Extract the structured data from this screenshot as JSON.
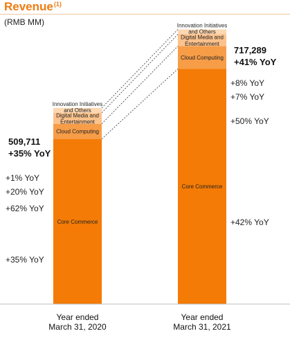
{
  "header": {
    "title": "Revenue",
    "footnote_marker": "(1)",
    "unit": "(RMB MM)"
  },
  "colors": {
    "accent": "#ef7b10",
    "core_commerce": "#f47b06",
    "cloud_computing": "#f79d48",
    "digital_media": "#fbc28c",
    "innovation": "#fcd7b1"
  },
  "chart_data": {
    "type": "bar",
    "stacked": true,
    "categories": [
      "Year ended\nMarch 31, 2020",
      "Year ended\nMarch 31, 2021"
    ],
    "series": [
      {
        "name": "Core Commerce",
        "values": [
          436104,
          621146
        ],
        "yoy": [
          "+35% YoY",
          "+42% YoY"
        ]
      },
      {
        "name": "Cloud Computing",
        "values": [
          40016,
          60120
        ],
        "yoy": [
          "+62% YoY",
          "+50% YoY"
        ]
      },
      {
        "name": "Digital Media and Entertainment",
        "values": [
          29094,
          31186
        ],
        "yoy": [
          "+20% YoY",
          "+7% YoY"
        ]
      },
      {
        "name": "Innovation Initiatives and Others",
        "values": [
          4497,
          4837
        ],
        "yoy": [
          "+1% YoY",
          "+8% YoY"
        ]
      }
    ],
    "totals": [
      "509,711",
      "717,289"
    ],
    "total_yoy": [
      "+35% YoY",
      "+41% YoY"
    ],
    "ylim": [
      0,
      750000
    ],
    "legend": "none",
    "grid": false
  }
}
